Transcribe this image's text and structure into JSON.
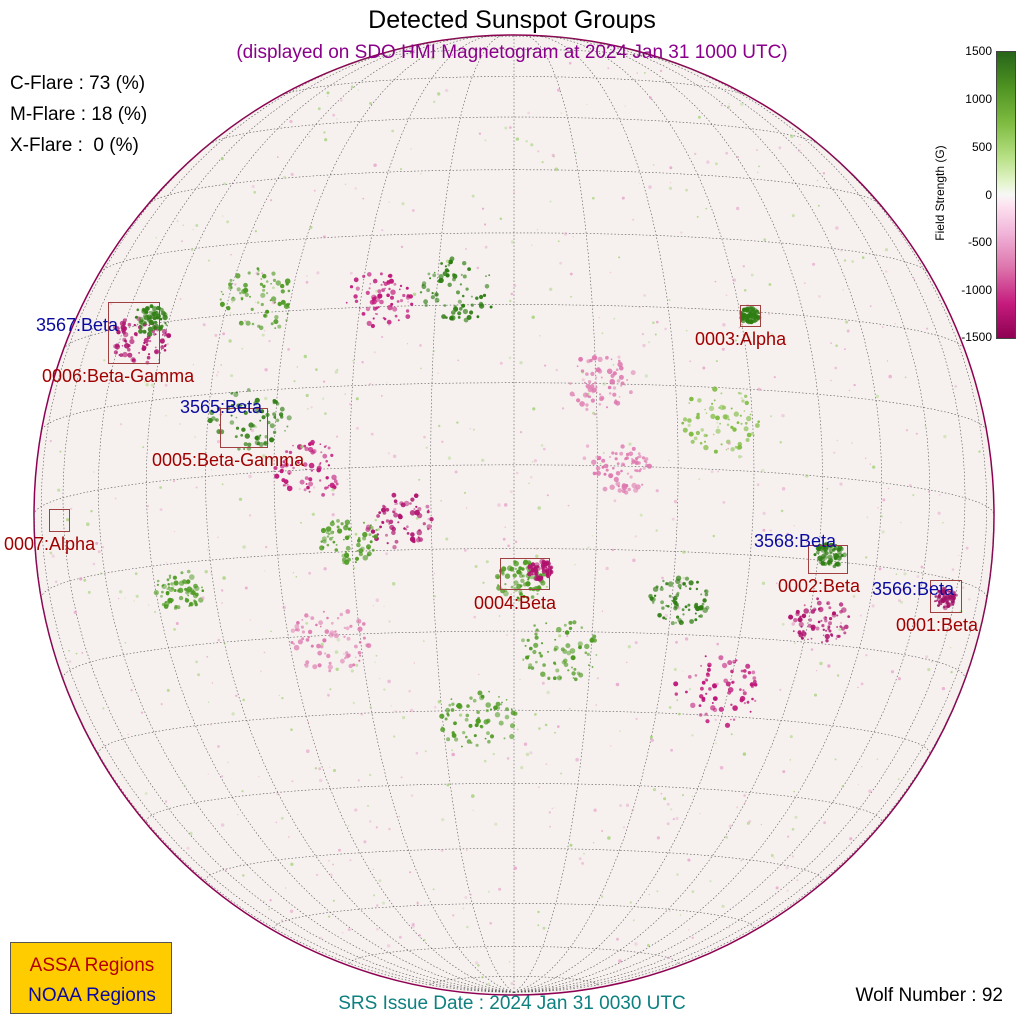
{
  "title": "Detected Sunspot Groups",
  "subtitle": "(displayed on SDO HMI Magnetogram at 2024 Jan 31 1000 UTC)",
  "flare_probabilities": {
    "c": "C-Flare : 73 (%)",
    "m": "M-Flare : 18 (%)",
    "x": "X-Flare :  0 (%)"
  },
  "colorbar": {
    "label": "Field Strength (G)",
    "ticks": [
      "1500",
      "1000",
      "500",
      "0",
      "-500",
      "-1000",
      "-1500"
    ],
    "colors": {
      "positive": "#276419",
      "zero": "#f7f7f7",
      "negative": "#8e0152"
    }
  },
  "regions": {
    "assa": [
      "0001:Beta",
      "0002:Beta",
      "0003:Alpha",
      "0004:Beta",
      "0005:Beta-Gamma",
      "0006:Beta-Gamma",
      "0007:Alpha"
    ],
    "noaa": [
      "3565:Beta",
      "3566:Beta",
      "3567:Beta",
      "3568:Beta"
    ]
  },
  "legend": {
    "assa": "ASSA Regions",
    "noaa": "NOAA Regions",
    "background": "#ffcc00",
    "assa_color": "#b30000",
    "noaa_color": "#0a0aa0"
  },
  "srs_issue": "SRS Issue Date : 2024 Jan 31 0030 UTC",
  "wolf_number": "Wolf Number : 92"
}
